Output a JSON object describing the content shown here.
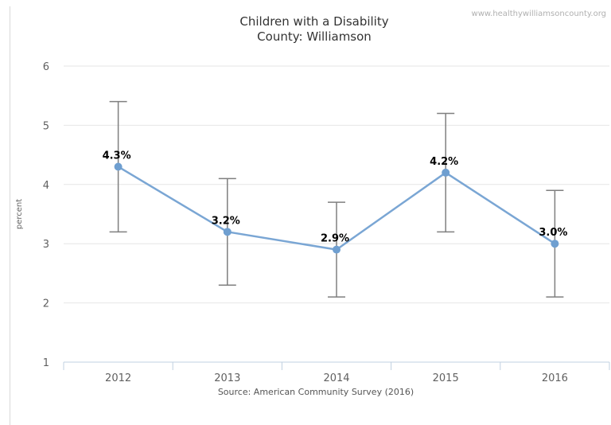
{
  "watermark": "www.healthywilliamsoncounty.org",
  "chart_data": {
    "type": "line",
    "title": "Children with a Disability",
    "subtitle": "County: Williamson",
    "ylabel": "percent",
    "xlabel": "",
    "source": "Source: American Community Survey (2016)",
    "categories": [
      "2012",
      "2013",
      "2014",
      "2015",
      "2016"
    ],
    "values": [
      4.3,
      3.2,
      2.9,
      4.2,
      3.0
    ],
    "data_labels": [
      "4.3%",
      "3.2%",
      "2.9%",
      "4.2%",
      "3.0%"
    ],
    "error_low": [
      3.2,
      2.3,
      2.1,
      3.2,
      2.1
    ],
    "error_high": [
      5.4,
      4.1,
      3.7,
      5.2,
      3.9
    ],
    "ylim": [
      1,
      6
    ],
    "yticks": [
      "1",
      "2",
      "3",
      "4",
      "5",
      "6"
    ],
    "grid": true,
    "legend": false,
    "colors": {
      "line": "#7aa6d4",
      "marker": "#6f9fd0",
      "error_bar": "#7f7f7f",
      "grid": "#e6e6e6"
    }
  }
}
